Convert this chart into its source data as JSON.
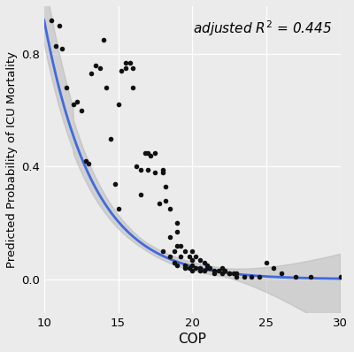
{
  "scatter_x": [
    10.5,
    10.8,
    11.0,
    11.2,
    11.5,
    12.0,
    12.2,
    12.5,
    12.8,
    13.0,
    13.2,
    13.5,
    13.8,
    14.0,
    14.2,
    14.5,
    14.8,
    15.0,
    15.0,
    15.2,
    15.5,
    15.5,
    15.8,
    16.0,
    16.0,
    16.2,
    16.5,
    16.5,
    16.8,
    17.0,
    17.0,
    17.2,
    17.5,
    17.5,
    17.8,
    18.0,
    18.0,
    18.0,
    18.2,
    18.2,
    18.5,
    18.5,
    18.5,
    18.8,
    18.8,
    19.0,
    19.0,
    19.0,
    19.0,
    19.2,
    19.2,
    19.5,
    19.5,
    19.5,
    19.8,
    19.8,
    20.0,
    20.0,
    20.0,
    20.0,
    20.2,
    20.2,
    20.5,
    20.5,
    20.5,
    20.8,
    20.8,
    21.0,
    21.0,
    21.2,
    21.5,
    21.5,
    21.8,
    22.0,
    22.0,
    22.2,
    22.5,
    22.5,
    22.8,
    23.0,
    23.0,
    23.5,
    24.0,
    24.5,
    25.0,
    25.5,
    26.0,
    27.0,
    28.0,
    30.0
  ],
  "scatter_y": [
    0.92,
    0.83,
    0.9,
    0.82,
    0.68,
    0.62,
    0.63,
    0.6,
    0.42,
    0.41,
    0.73,
    0.76,
    0.75,
    0.85,
    0.68,
    0.5,
    0.34,
    0.62,
    0.25,
    0.74,
    0.77,
    0.75,
    0.77,
    0.75,
    0.68,
    0.4,
    0.3,
    0.39,
    0.45,
    0.45,
    0.39,
    0.44,
    0.45,
    0.38,
    0.27,
    0.39,
    0.1,
    0.38,
    0.33,
    0.28,
    0.15,
    0.25,
    0.08,
    0.1,
    0.06,
    0.2,
    0.17,
    0.12,
    0.05,
    0.12,
    0.08,
    0.1,
    0.05,
    0.04,
    0.08,
    0.04,
    0.1,
    0.07,
    0.05,
    0.03,
    0.08,
    0.04,
    0.07,
    0.04,
    0.03,
    0.06,
    0.03,
    0.05,
    0.04,
    0.04,
    0.03,
    0.02,
    0.03,
    0.04,
    0.02,
    0.03,
    0.02,
    0.02,
    0.02,
    0.02,
    0.01,
    0.01,
    0.01,
    0.01,
    0.06,
    0.04,
    0.02,
    0.01,
    0.01,
    0.01
  ],
  "xlabel": "COP",
  "ylabel": "Predicted Probability of ICU Mortality",
  "annotation": "adjusted $R^2$ = 0.445",
  "xlim": [
    10,
    30
  ],
  "ylim": [
    -0.12,
    0.97
  ],
  "xticks": [
    10,
    15,
    20,
    25,
    30
  ],
  "yticks": [
    0.0,
    0.4,
    0.8
  ],
  "curve_color": "#4169E1",
  "ci_color": "#b0b0b0",
  "dot_color": "#111111",
  "bg_color": "#ebebeb",
  "grid_color": "#ffffff"
}
